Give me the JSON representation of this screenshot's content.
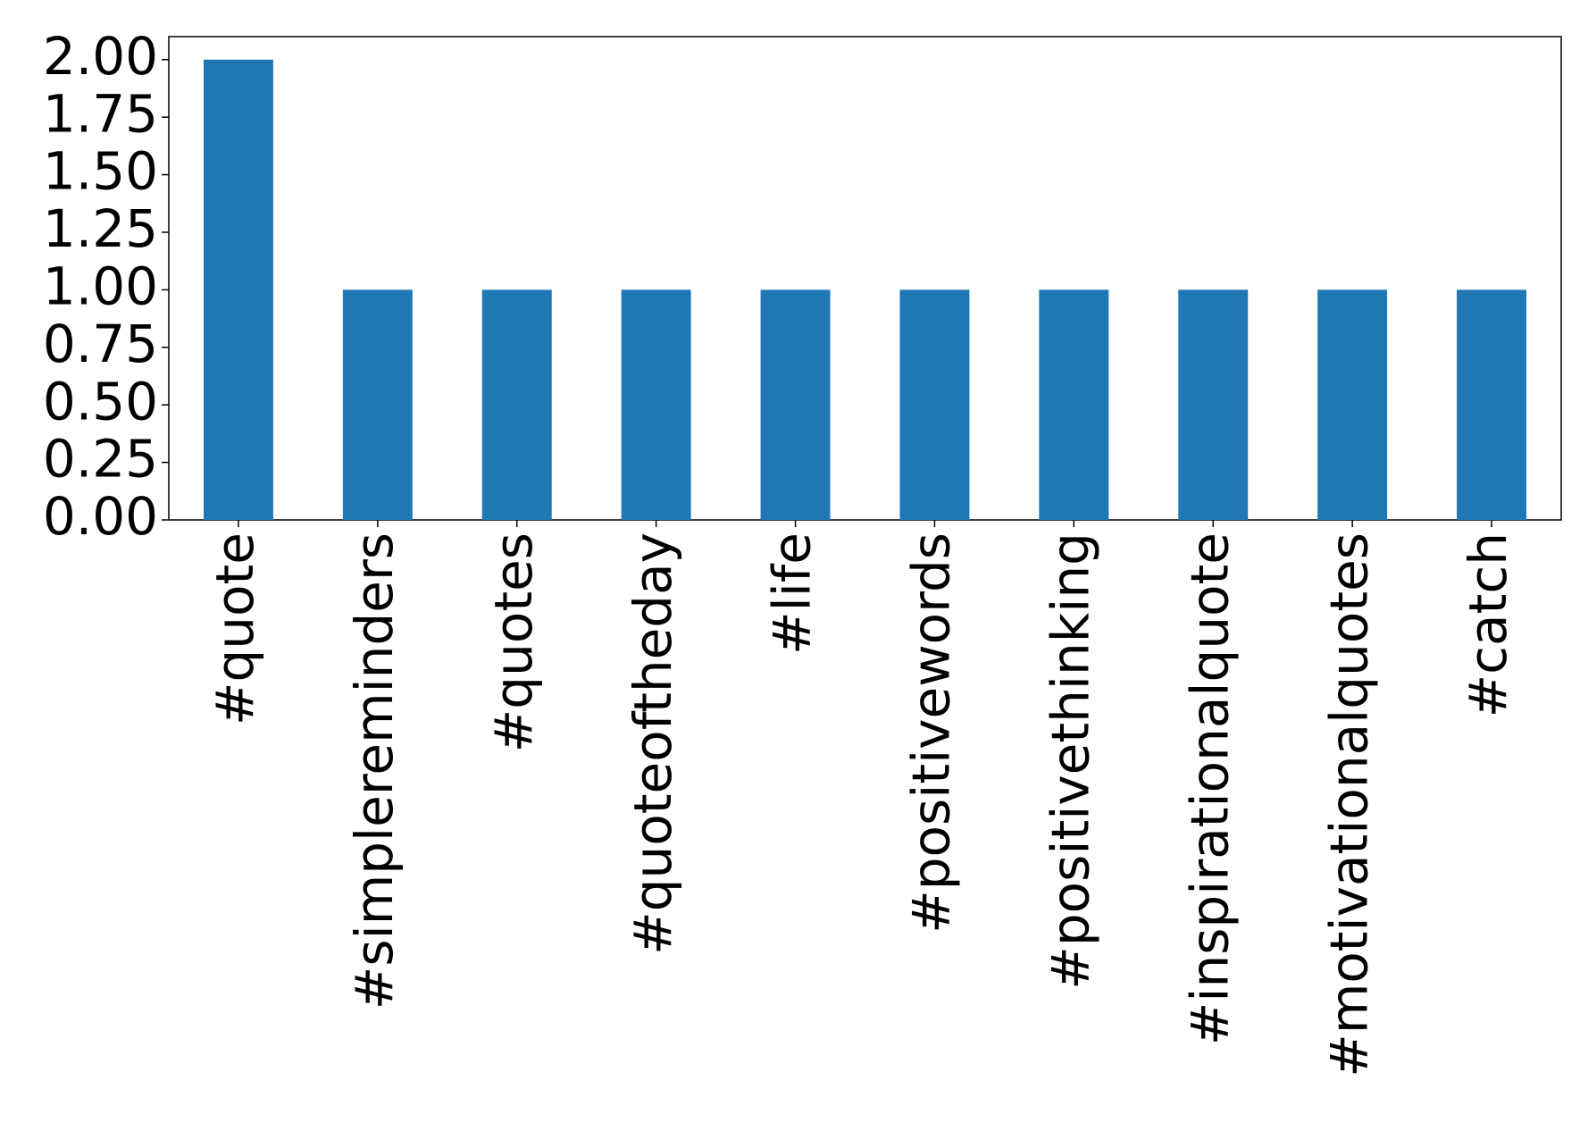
{
  "chart_data": {
    "type": "bar",
    "categories": [
      "#quote",
      "#simplereminders",
      "#quotes",
      "#quoteoftheday",
      "#life",
      "#positivewords",
      "#positivethinking",
      "#inspirationalquote",
      "#motivationalquotes",
      "#catch"
    ],
    "values": [
      2,
      1,
      1,
      1,
      1,
      1,
      1,
      1,
      1,
      1
    ],
    "color": "#1f77b4",
    "ylim": [
      0,
      2.1
    ],
    "yticks": [
      {
        "value": 0,
        "label": "0.00"
      },
      {
        "value": 0.25,
        "label": "0.25"
      },
      {
        "value": 0.5,
        "label": "0.50"
      },
      {
        "value": 0.75,
        "label": "0.75"
      },
      {
        "value": 1,
        "label": "1.00"
      },
      {
        "value": 1.25,
        "label": "1.25"
      },
      {
        "value": 1.5,
        "label": "1.50"
      },
      {
        "value": 1.75,
        "label": "1.75"
      },
      {
        "value": 2,
        "label": "2.00"
      }
    ],
    "grid": false
  }
}
